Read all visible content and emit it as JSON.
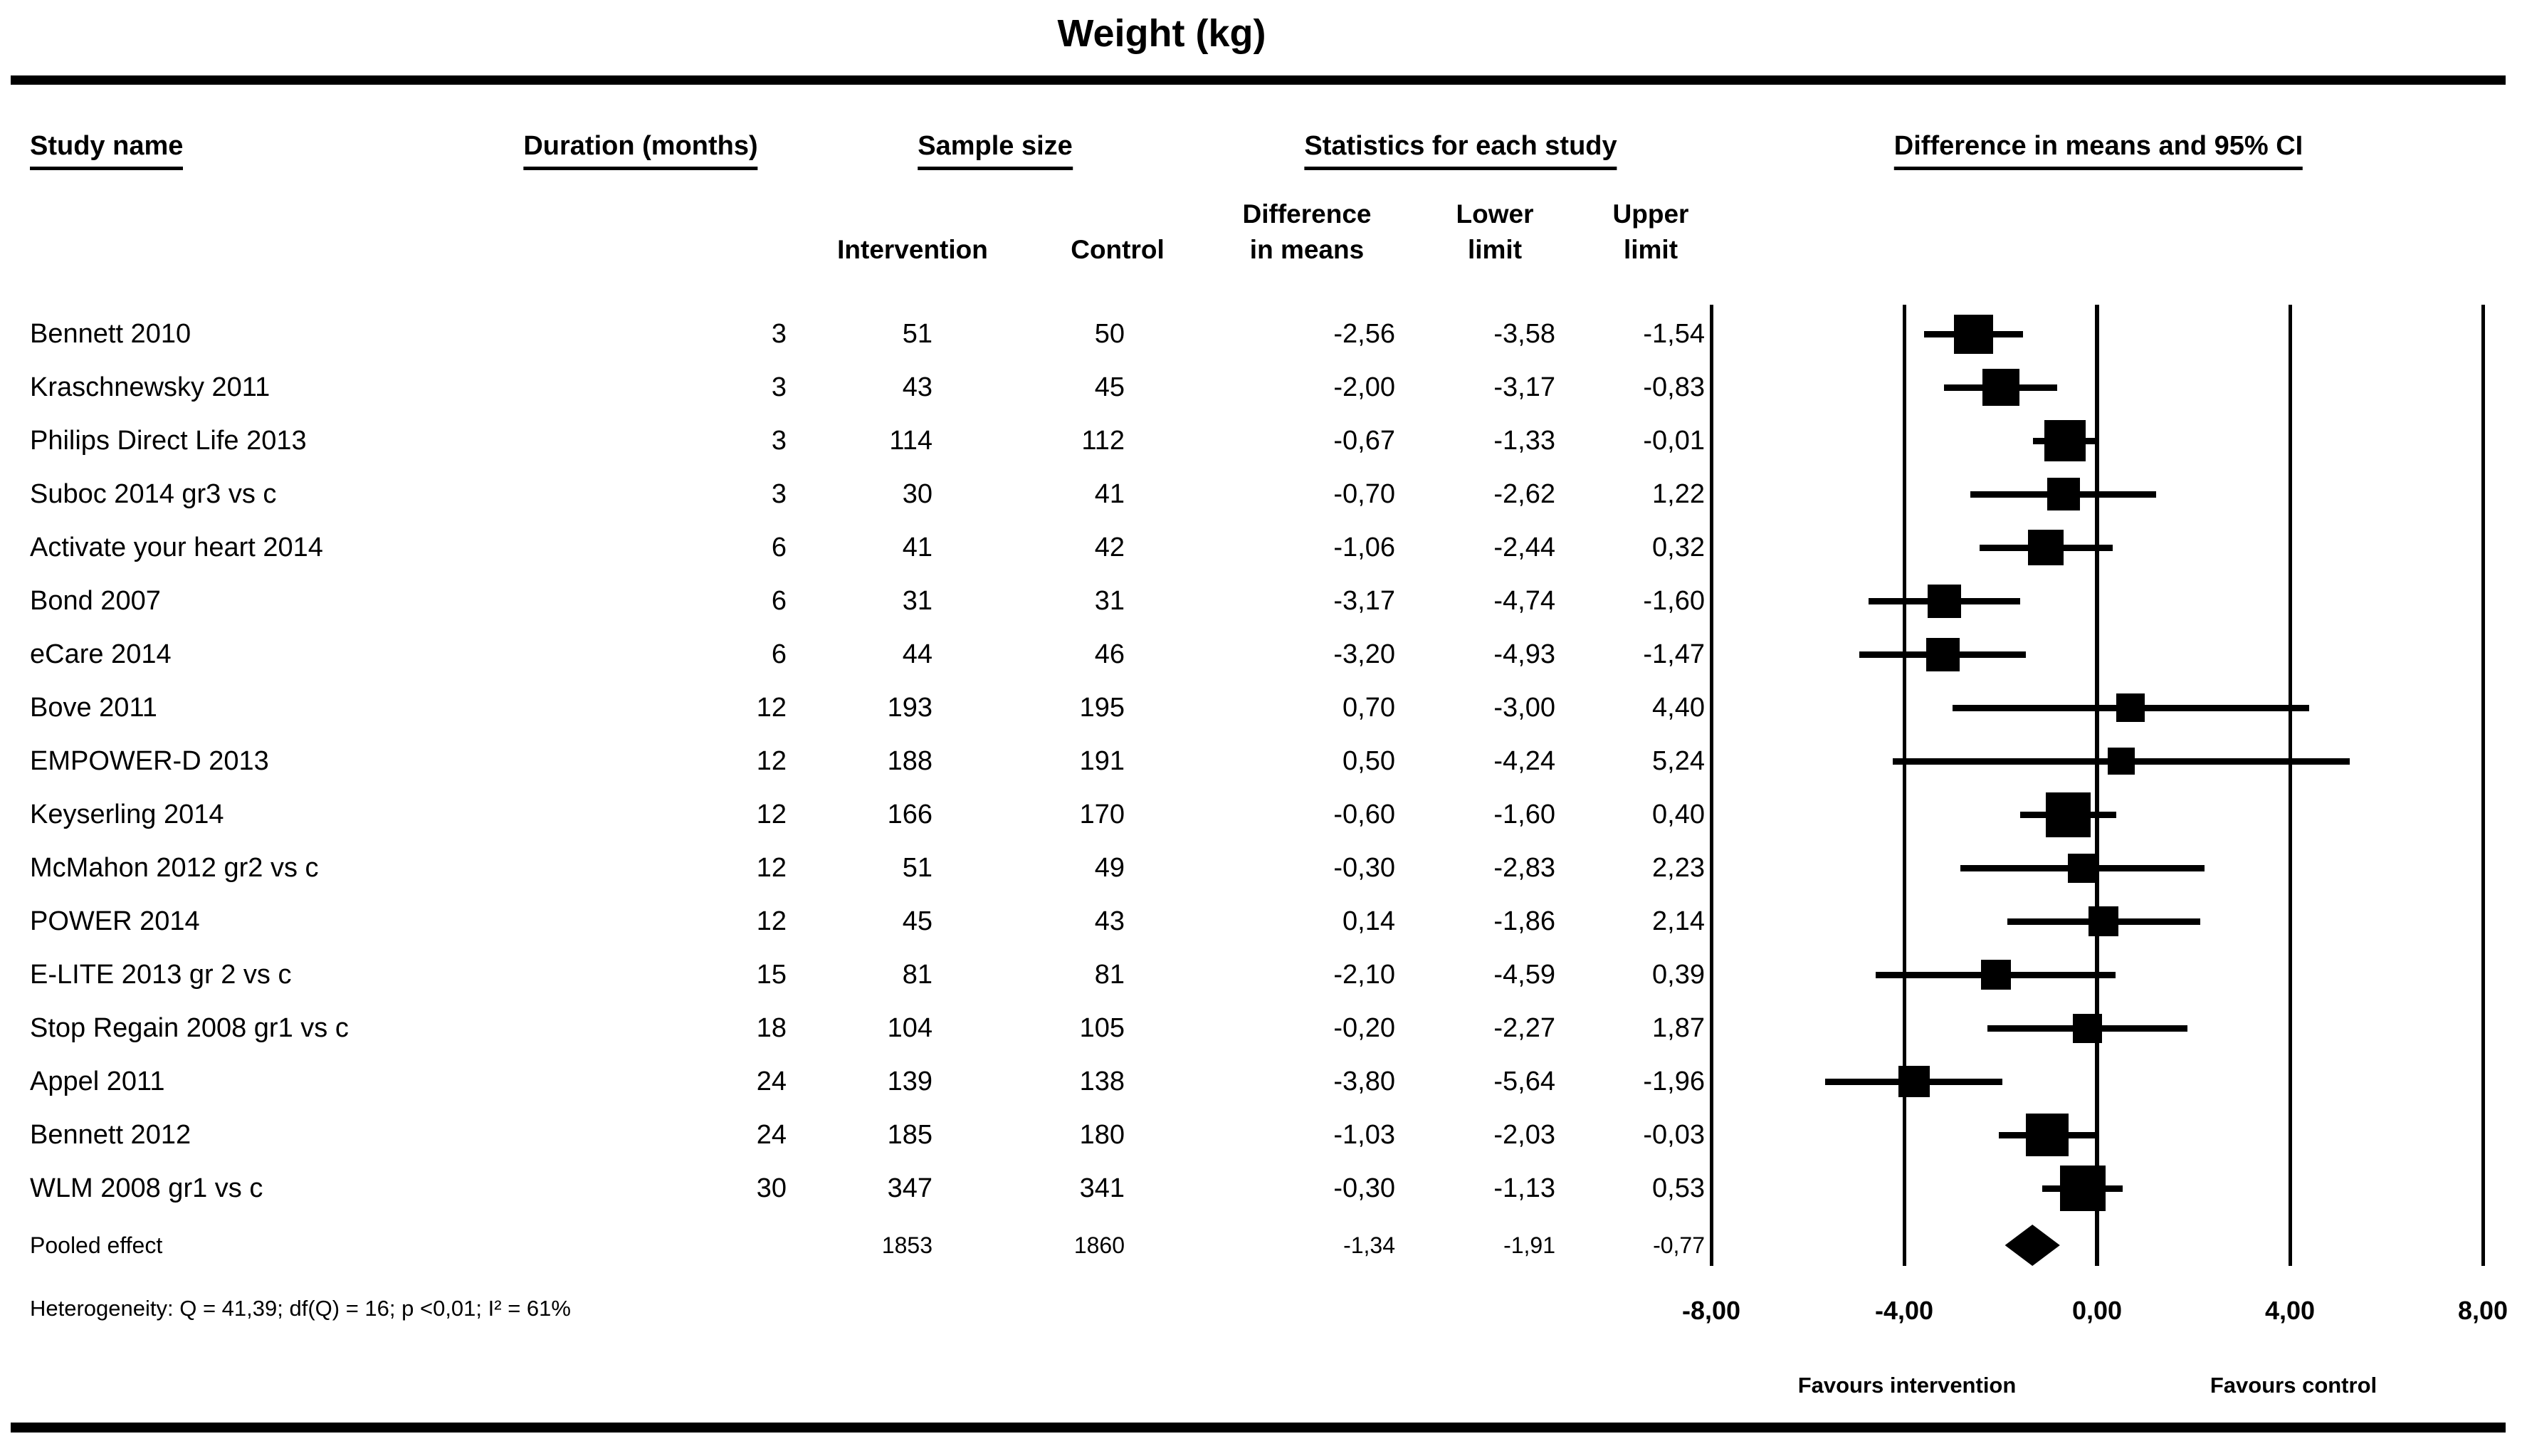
{
  "title": "Weight (kg)",
  "headers": {
    "study": "Study name",
    "duration": "Duration (months)",
    "sample_size": "Sample size",
    "statistics": "Statistics for each study",
    "plot": "Difference in means and 95% CI",
    "intervention": "Intervention",
    "control": "Control",
    "diff_line1": "Difference",
    "diff_line2": "in means",
    "lower_line1": "Lower",
    "lower_line2": "limit",
    "upper_line1": "Upper",
    "upper_line2": "limit"
  },
  "rows": [
    {
      "name": "Bennett 2010",
      "duration": "3",
      "n_intervention": "51",
      "n_control": "50",
      "diff": "-2,56",
      "lower": "-3,58",
      "upper": "-1,54",
      "marker_px": 55
    },
    {
      "name": "Kraschnewsky 2011",
      "duration": "3",
      "n_intervention": "43",
      "n_control": "45",
      "diff": "-2,00",
      "lower": "-3,17",
      "upper": "-0,83",
      "marker_px": 52
    },
    {
      "name": "Philips Direct Life 2013",
      "duration": "3",
      "n_intervention": "114",
      "n_control": "112",
      "diff": "-0,67",
      "lower": "-1,33",
      "upper": "-0,01",
      "marker_px": 58
    },
    {
      "name": "Suboc 2014 gr3 vs c",
      "duration": "3",
      "n_intervention": "30",
      "n_control": "41",
      "diff": "-0,70",
      "lower": "-2,62",
      "upper": "1,22",
      "marker_px": 46
    },
    {
      "name": "Activate your heart 2014",
      "duration": "6",
      "n_intervention": "41",
      "n_control": "42",
      "diff": "-1,06",
      "lower": "-2,44",
      "upper": "0,32",
      "marker_px": 50
    },
    {
      "name": "Bond 2007",
      "duration": "6",
      "n_intervention": "31",
      "n_control": "31",
      "diff": "-3,17",
      "lower": "-4,74",
      "upper": "-1,60",
      "marker_px": 47
    },
    {
      "name": "eCare 2014",
      "duration": "6",
      "n_intervention": "44",
      "n_control": "46",
      "diff": "-3,20",
      "lower": "-4,93",
      "upper": "-1,47",
      "marker_px": 47
    },
    {
      "name": "Bove 2011",
      "duration": "12",
      "n_intervention": "193",
      "n_control": "195",
      "diff": "0,70",
      "lower": "-3,00",
      "upper": "4,40",
      "marker_px": 40
    },
    {
      "name": "EMPOWER-D 2013",
      "duration": "12",
      "n_intervention": "188",
      "n_control": "191",
      "diff": "0,50",
      "lower": "-4,24",
      "upper": "5,24",
      "marker_px": 38
    },
    {
      "name": "Keyserling 2014",
      "duration": "12",
      "n_intervention": "166",
      "n_control": "170",
      "diff": "-0,60",
      "lower": "-1,60",
      "upper": "0,40",
      "marker_px": 63
    },
    {
      "name": "McMahon 2012 gr2 vs c",
      "duration": "12",
      "n_intervention": "51",
      "n_control": "49",
      "diff": "-0,30",
      "lower": "-2,83",
      "upper": "2,23",
      "marker_px": 41
    },
    {
      "name": "POWER 2014",
      "duration": "12",
      "n_intervention": "45",
      "n_control": "43",
      "diff": "0,14",
      "lower": "-1,86",
      "upper": "2,14",
      "marker_px": 42
    },
    {
      "name": "E-LITE 2013 gr 2 vs c",
      "duration": "15",
      "n_intervention": "81",
      "n_control": "81",
      "diff": "-2,10",
      "lower": "-4,59",
      "upper": "0,39",
      "marker_px": 42
    },
    {
      "name": "Stop Regain 2008 gr1 vs c",
      "duration": "18",
      "n_intervention": "104",
      "n_control": "105",
      "diff": "-0,20",
      "lower": "-2,27",
      "upper": "1,87",
      "marker_px": 41
    },
    {
      "name": "Appel 2011",
      "duration": "24",
      "n_intervention": "139",
      "n_control": "138",
      "diff": "-3,80",
      "lower": "-5,64",
      "upper": "-1,96",
      "marker_px": 44
    },
    {
      "name": "Bennett 2012",
      "duration": "24",
      "n_intervention": "185",
      "n_control": "180",
      "diff": "-1,03",
      "lower": "-2,03",
      "upper": "-0,03",
      "marker_px": 60
    },
    {
      "name": "WLM 2008 gr1 vs c",
      "duration": "30",
      "n_intervention": "347",
      "n_control": "341",
      "diff": "-0,30",
      "lower": "-1,13",
      "upper": "0,53",
      "marker_px": 64
    }
  ],
  "pooled": {
    "name": "Pooled effect",
    "duration": "",
    "n_intervention": "1853",
    "n_control": "1860",
    "diff": "-1,34",
    "lower": "-1,91",
    "upper": "-0,77"
  },
  "axis": {
    "ticks": [
      {
        "label": "-8,00",
        "value": -8
      },
      {
        "label": "-4,00",
        "value": -4
      },
      {
        "label": "0,00",
        "value": 0
      },
      {
        "label": "4,00",
        "value": 4
      },
      {
        "label": "8,00",
        "value": 8
      }
    ]
  },
  "footer": {
    "heterogeneity": "Heterogeneity: Q = 41,39; df(Q) = 16; p <0,01; I² = 61%",
    "favours_left": "Favours intervention",
    "favours_right": "Favours control"
  },
  "chart_data": {
    "type": "scatter",
    "subtype": "forest-plot",
    "title": "Weight (kg)",
    "xlim": [
      -8,
      8
    ],
    "x_ticks": [
      -8,
      -4,
      0,
      4,
      8
    ],
    "gridlines_at": [
      -8,
      -4,
      0,
      4,
      8
    ],
    "x_direction_labels": {
      "left": "Favours intervention",
      "right": "Favours control"
    },
    "studies": [
      {
        "name": "Bennett 2010",
        "duration_months": 3,
        "n_intervention": 51,
        "n_control": 50,
        "diff_in_means": -2.56,
        "ci_lower": -3.58,
        "ci_upper": -1.54
      },
      {
        "name": "Kraschnewsky 2011",
        "duration_months": 3,
        "n_intervention": 43,
        "n_control": 45,
        "diff_in_means": -2.0,
        "ci_lower": -3.17,
        "ci_upper": -0.83
      },
      {
        "name": "Philips Direct Life 2013",
        "duration_months": 3,
        "n_intervention": 114,
        "n_control": 112,
        "diff_in_means": -0.67,
        "ci_lower": -1.33,
        "ci_upper": -0.01
      },
      {
        "name": "Suboc 2014 gr3 vs c",
        "duration_months": 3,
        "n_intervention": 30,
        "n_control": 41,
        "diff_in_means": -0.7,
        "ci_lower": -2.62,
        "ci_upper": 1.22
      },
      {
        "name": "Activate your heart 2014",
        "duration_months": 6,
        "n_intervention": 41,
        "n_control": 42,
        "diff_in_means": -1.06,
        "ci_lower": -2.44,
        "ci_upper": 0.32
      },
      {
        "name": "Bond 2007",
        "duration_months": 6,
        "n_intervention": 31,
        "n_control": 31,
        "diff_in_means": -3.17,
        "ci_lower": -4.74,
        "ci_upper": -1.6
      },
      {
        "name": "eCare 2014",
        "duration_months": 6,
        "n_intervention": 44,
        "n_control": 46,
        "diff_in_means": -3.2,
        "ci_lower": -4.93,
        "ci_upper": -1.47
      },
      {
        "name": "Bove 2011",
        "duration_months": 12,
        "n_intervention": 193,
        "n_control": 195,
        "diff_in_means": 0.7,
        "ci_lower": -3.0,
        "ci_upper": 4.4
      },
      {
        "name": "EMPOWER-D 2013",
        "duration_months": 12,
        "n_intervention": 188,
        "n_control": 191,
        "diff_in_means": 0.5,
        "ci_lower": -4.24,
        "ci_upper": 5.24
      },
      {
        "name": "Keyserling 2014",
        "duration_months": 12,
        "n_intervention": 166,
        "n_control": 170,
        "diff_in_means": -0.6,
        "ci_lower": -1.6,
        "ci_upper": 0.4
      },
      {
        "name": "McMahon 2012 gr2 vs c",
        "duration_months": 12,
        "n_intervention": 51,
        "n_control": 49,
        "diff_in_means": -0.3,
        "ci_lower": -2.83,
        "ci_upper": 2.23
      },
      {
        "name": "POWER 2014",
        "duration_months": 12,
        "n_intervention": 45,
        "n_control": 43,
        "diff_in_means": 0.14,
        "ci_lower": -1.86,
        "ci_upper": 2.14
      },
      {
        "name": "E-LITE 2013 gr 2 vs c",
        "duration_months": 15,
        "n_intervention": 81,
        "n_control": 81,
        "diff_in_means": -2.1,
        "ci_lower": -4.59,
        "ci_upper": 0.39
      },
      {
        "name": "Stop Regain 2008 gr1 vs c",
        "duration_months": 18,
        "n_intervention": 104,
        "n_control": 105,
        "diff_in_means": -0.2,
        "ci_lower": -2.27,
        "ci_upper": 1.87
      },
      {
        "name": "Appel 2011",
        "duration_months": 24,
        "n_intervention": 139,
        "n_control": 138,
        "diff_in_means": -3.8,
        "ci_lower": -5.64,
        "ci_upper": -1.96
      },
      {
        "name": "Bennett 2012",
        "duration_months": 24,
        "n_intervention": 185,
        "n_control": 180,
        "diff_in_means": -1.03,
        "ci_lower": -2.03,
        "ci_upper": -0.03
      },
      {
        "name": "WLM 2008 gr1 vs c",
        "duration_months": 30,
        "n_intervention": 347,
        "n_control": 341,
        "diff_in_means": -0.3,
        "ci_lower": -1.13,
        "ci_upper": 0.53
      }
    ],
    "pooled": {
      "name": "Pooled effect",
      "n_intervention": 1853,
      "n_control": 1860,
      "diff_in_means": -1.34,
      "ci_lower": -1.91,
      "ci_upper": -0.77
    },
    "heterogeneity": {
      "Q": 41.39,
      "df_Q": 16,
      "p": "<0,01",
      "I2_percent": 61
    }
  }
}
